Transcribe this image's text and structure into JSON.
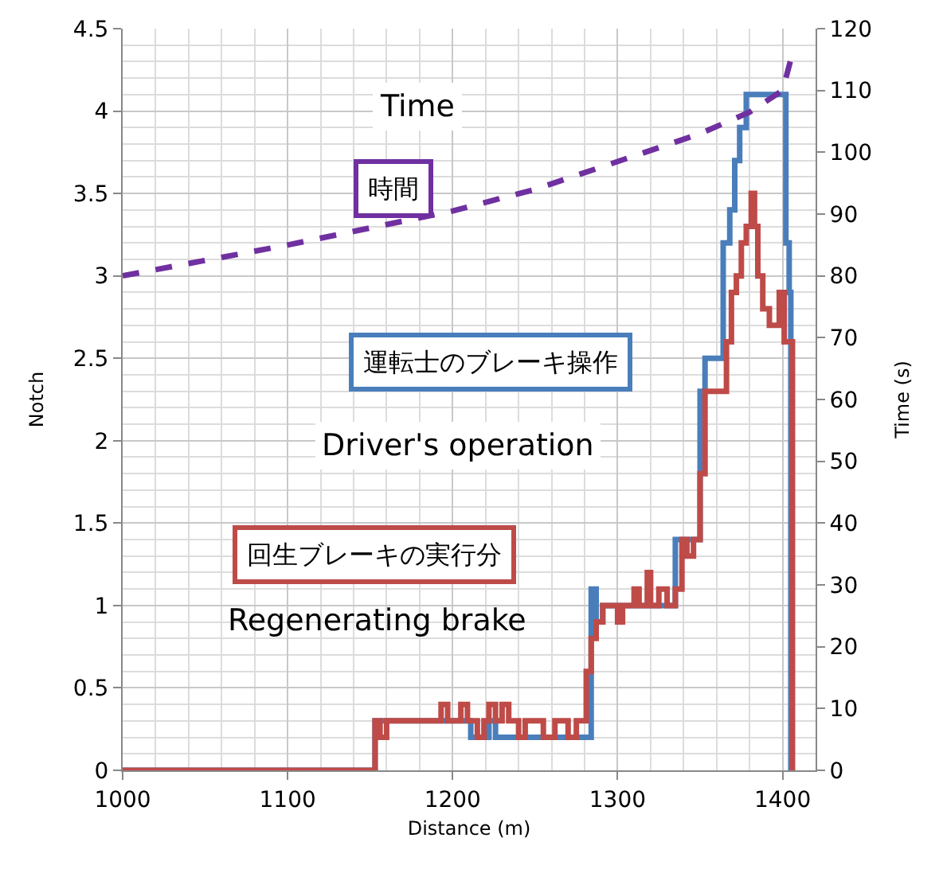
{
  "chart_data": {
    "type": "step",
    "xlabel": "Distance (m)",
    "ylabel": "Notch",
    "y2label": "Time (s)",
    "xlim": [
      1000,
      1420
    ],
    "xticks": [
      1000,
      1100,
      1200,
      1300,
      1400
    ],
    "ylim": [
      0,
      4.5
    ],
    "yticks": [
      0,
      0.5,
      1,
      1.5,
      2,
      2.5,
      3,
      3.5,
      4,
      4.5
    ],
    "y2lim": [
      0,
      120
    ],
    "y2ticks": [
      0,
      10,
      20,
      30,
      40,
      50,
      60,
      70,
      80,
      90,
      100,
      110,
      120
    ],
    "grid": true,
    "marker": "none",
    "annotations": [
      "Time",
      "時間",
      "運転士のブレーキ操作",
      "Driver's operation",
      "回生ブレーキの実行分",
      "Regenerating brake"
    ],
    "series": [
      {
        "color": "#4a7ebb",
        "line_style": "solid",
        "x": [
          1000,
          1153,
          1211,
          1222,
          1226,
          1284,
          1287,
          1291,
          1335,
          1350,
          1353,
          1364,
          1368,
          1371,
          1374,
          1378,
          1402,
          1404,
          1405,
          1406
        ],
        "values": [
          0,
          0.3,
          0.2,
          0.3,
          0.2,
          1.1,
          0.9,
          1.0,
          1.4,
          2.3,
          2.5,
          3.2,
          3.4,
          3.7,
          3.9,
          4.1,
          3.2,
          2.9,
          0,
          0
        ]
      },
      {
        "color": "#be4b48",
        "line_style": "solid",
        "x": [
          1000,
          1153,
          1156,
          1160,
          1193,
          1197,
          1205,
          1209,
          1215,
          1219,
          1222,
          1226,
          1230,
          1234,
          1240,
          1244,
          1255,
          1262,
          1270,
          1275,
          1281,
          1284,
          1287,
          1291,
          1300,
          1303,
          1310,
          1313,
          1318,
          1320,
          1325,
          1330,
          1335,
          1339,
          1342,
          1346,
          1350,
          1353,
          1366,
          1369,
          1372,
          1375,
          1378,
          1381,
          1383,
          1385,
          1388,
          1392,
          1398,
          1401,
          1406,
          1407
        ],
        "values": [
          0,
          0.3,
          0.2,
          0.3,
          0.4,
          0.3,
          0.4,
          0.3,
          0.2,
          0.3,
          0.4,
          0.3,
          0.4,
          0.3,
          0.2,
          0.3,
          0.2,
          0.3,
          0.2,
          0.3,
          0.6,
          0.8,
          0.9,
          1.0,
          0.9,
          1.0,
          1.1,
          1.0,
          1.2,
          1.0,
          1.1,
          1.0,
          1.1,
          1.4,
          1.3,
          1.4,
          1.8,
          2.3,
          2.6,
          2.9,
          3.0,
          3.2,
          3.3,
          3.5,
          3.3,
          3.0,
          2.8,
          2.7,
          2.9,
          2.6,
          0,
          0
        ]
      },
      {
        "type": "line",
        "axis": "y2",
        "color": "#7030a0",
        "line_style": "dashed",
        "x": [
          1000,
          1100,
          1200,
          1250,
          1300,
          1350,
          1380,
          1400,
          1405
        ],
        "values": [
          80,
          85,
          90.5,
          94,
          98.5,
          103,
          106.5,
          110,
          115
        ]
      }
    ]
  }
}
